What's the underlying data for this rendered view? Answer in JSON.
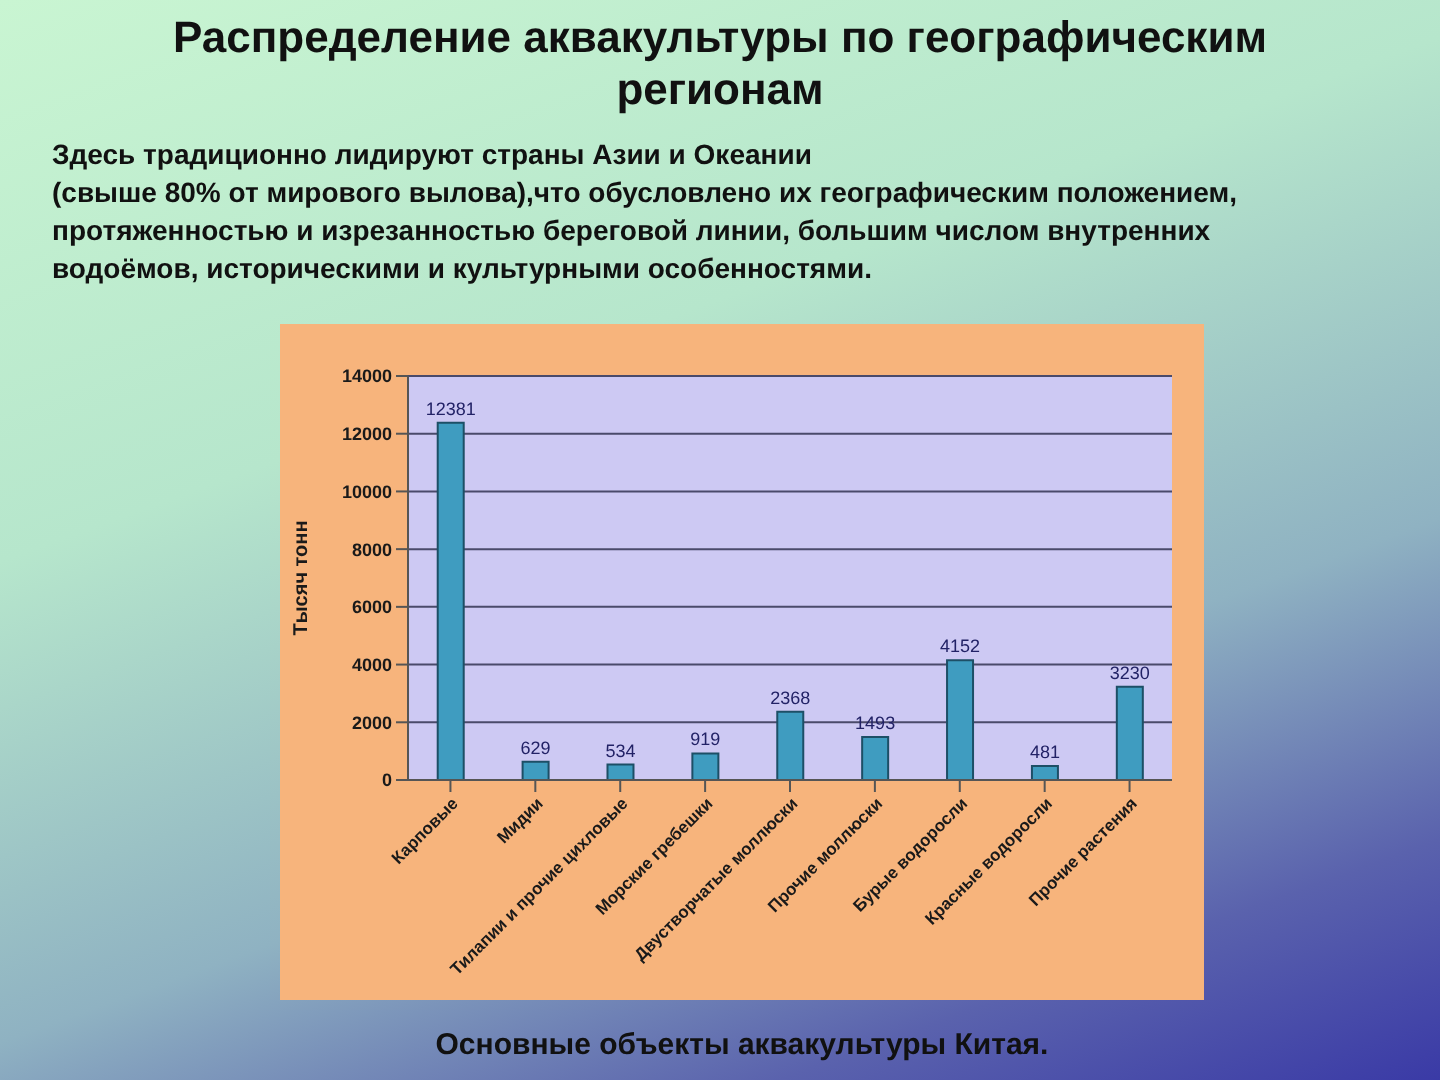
{
  "chart_data": {
    "type": "bar",
    "title": "Распределение аквакультуры по географическим регионам",
    "subtitle": "Здесь традиционно лидируют страны Азии и Океании\n(свыше 80% от мирового вылова),что обусловлено их географическим положением, протяженностью и изрезанностью береговой линии, большим числом внутренних водоёмов, историческими и культурными особенностями.",
    "ylabel": "Тысяч тонн",
    "annotations": [
      "Основные объекты аквакультуры Китая."
    ],
    "categories": [
      "Карповые",
      "Мидии",
      "Тилапии и прочие цихловые",
      "Морские гребешки",
      "Двустворчатые моллюски",
      "Прочие моллюски",
      "Бурые водоросли",
      "Красные водоросли",
      "Прочие растения"
    ],
    "values": [
      12381,
      629,
      534,
      919,
      2368,
      1493,
      4152,
      481,
      3230
    ],
    "color": "#3f9cc0",
    "ylim": [
      0,
      14000
    ],
    "yticks": [
      0,
      2000,
      4000,
      6000,
      8000,
      10000,
      12000,
      14000
    ],
    "grid": "y",
    "data_labels": true
  }
}
